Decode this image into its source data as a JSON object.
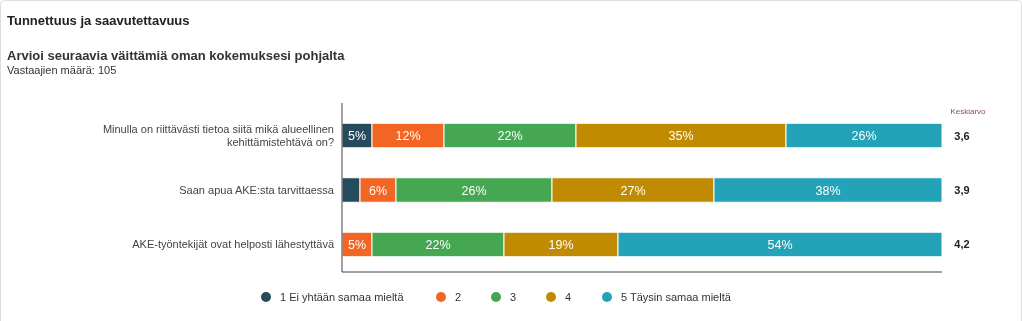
{
  "chart_data": {
    "type": "bar",
    "orientation": "horizontal",
    "stacked": true,
    "title": "Tunnettuus ja saavutettavuus",
    "subtitle": "Arvioi seuraavia väittämiä oman kokemuksesi pohjalta",
    "annotations": [
      "Vastaajien määrä: 105",
      "Keskiarvo",
      "3,6",
      "3,9",
      "4,2"
    ],
    "categories": [
      "Minulla on riittävästi tietoa siitä mikä alueellinen kehittämistehtävä on?",
      "Saan apua AKE:sta tarvittaessa",
      "AKE-työntekijät ovat helposti lähestyttävä"
    ],
    "xlim": [
      0,
      100
    ],
    "tick_labels": "y",
    "legend": "bottom",
    "series": [
      {
        "name": "1 Ei yhtään samaa mieltä",
        "color": "#264b5d",
        "values": [
          5,
          3,
          0
        ],
        "value_labels": [
          "5%",
          null,
          null
        ]
      },
      {
        "name": "2",
        "color": "#f26522",
        "values": [
          12,
          6,
          5
        ],
        "value_labels": [
          "12%",
          "6%",
          "5%"
        ]
      },
      {
        "name": "3",
        "color": "#45a752",
        "values": [
          22,
          26,
          22
        ],
        "value_labels": [
          "22%",
          "26%",
          "22%"
        ]
      },
      {
        "name": "4",
        "color": "#c08b00",
        "values": [
          35,
          27,
          19
        ],
        "value_labels": [
          "35%",
          "27%",
          "19%"
        ]
      },
      {
        "name": "5 Täysin samaa mieltä",
        "color": "#23a2b8",
        "values": [
          26,
          38,
          54
        ],
        "value_labels": [
          "26%",
          "38%",
          "54%"
        ]
      }
    ]
  }
}
